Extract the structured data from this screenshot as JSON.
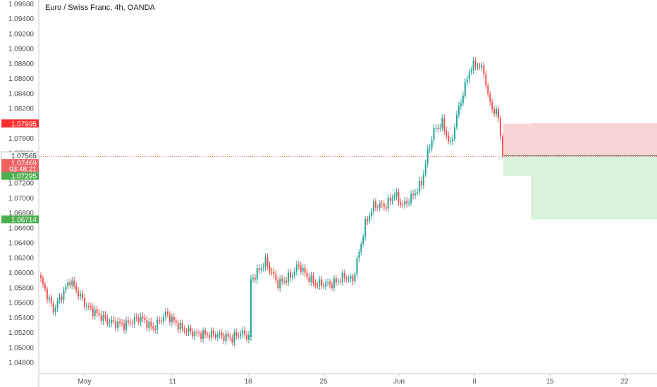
{
  "header": {
    "title": "Euro / Swiss Franc, 4h, OANDA"
  },
  "colors": {
    "up": "#26a69a",
    "down": "#ef5350",
    "stop_zone": "#f8c9c9",
    "target_zone": "#d6efd6",
    "stop_tag": "#ff2d2d",
    "target_tag": "#4caf50",
    "entry_tag": "#4a4a4a",
    "price_tag": "#f06262",
    "grid_line": "#dddddd"
  },
  "chart_data": {
    "type": "candlestick",
    "ylim": [
      1.0465,
      1.0965
    ],
    "y_ticks": [
      "1.09600",
      "1.09400",
      "1.09200",
      "1.09000",
      "1.08800",
      "1.08600",
      "1.08400",
      "1.08200",
      "1.08000",
      "1.07800",
      "1.07600",
      "1.07400",
      "1.07200",
      "1.07000",
      "1.06800",
      "1.06600",
      "1.06400",
      "1.06200",
      "1.06000",
      "1.05800",
      "1.05600",
      "1.05400",
      "1.05200",
      "1.05000",
      "1.04800"
    ],
    "x_ticks": [
      "May",
      "11",
      "18",
      "25",
      "Jun",
      "8",
      "15",
      "22"
    ],
    "anchors": [
      {
        "i": 0,
        "p": 1.059
      },
      {
        "i": 6,
        "p": 1.055
      },
      {
        "i": 14,
        "p": 1.059
      },
      {
        "i": 22,
        "p": 1.0555
      },
      {
        "i": 32,
        "p": 1.0535
      },
      {
        "i": 40,
        "p": 1.053
      },
      {
        "i": 48,
        "p": 1.054
      },
      {
        "i": 54,
        "p": 1.0525
      },
      {
        "i": 60,
        "p": 1.0545
      },
      {
        "i": 68,
        "p": 1.0525
      },
      {
        "i": 75,
        "p": 1.0518
      },
      {
        "i": 85,
        "p": 1.0517
      },
      {
        "i": 92,
        "p": 1.0512
      },
      {
        "i": 96,
        "p": 1.052
      },
      {
        "i": 100,
        "p": 1.0514
      },
      {
        "i": 101,
        "p": 1.059
      },
      {
        "i": 104,
        "p": 1.06
      },
      {
        "i": 108,
        "p": 1.0615
      },
      {
        "i": 114,
        "p": 1.0585
      },
      {
        "i": 120,
        "p": 1.0595
      },
      {
        "i": 124,
        "p": 1.061
      },
      {
        "i": 128,
        "p": 1.0595
      },
      {
        "i": 132,
        "p": 1.0585
      },
      {
        "i": 140,
        "p": 1.0585
      },
      {
        "i": 146,
        "p": 1.0595
      },
      {
        "i": 150,
        "p": 1.059
      },
      {
        "i": 156,
        "p": 1.0665
      },
      {
        "i": 160,
        "p": 1.069
      },
      {
        "i": 166,
        "p": 1.069
      },
      {
        "i": 170,
        "p": 1.0705
      },
      {
        "i": 174,
        "p": 1.069
      },
      {
        "i": 178,
        "p": 1.07
      },
      {
        "i": 183,
        "p": 1.072
      },
      {
        "i": 186,
        "p": 1.076
      },
      {
        "i": 189,
        "p": 1.079
      },
      {
        "i": 193,
        "p": 1.08
      },
      {
        "i": 197,
        "p": 1.077
      },
      {
        "i": 200,
        "p": 1.081
      },
      {
        "i": 203,
        "p": 1.084
      },
      {
        "i": 206,
        "p": 1.087
      },
      {
        "i": 209,
        "p": 1.088
      },
      {
        "i": 213,
        "p": 1.087
      },
      {
        "i": 215,
        "p": 1.0835
      },
      {
        "i": 218,
        "p": 1.0815
      },
      {
        "i": 220,
        "p": 1.081
      },
      {
        "i": 222,
        "p": 1.0757
      }
    ],
    "current_price": 1.07565,
    "position": {
      "entry": 1.07566,
      "stop": 1.08002,
      "target": 1.06714,
      "start_index": 222,
      "stop_zone_top": 1.07995,
      "target_zone_bottom": 1.06714
    },
    "price_tags": [
      {
        "value": 1.08002,
        "label": "1.08002",
        "kind": "stop"
      },
      {
        "value": 1.07995,
        "label": "1.07995",
        "kind": "stop"
      },
      {
        "value": 1.07566,
        "label": "1.07566",
        "kind": "entry"
      },
      {
        "value": 1.07565,
        "label": "1.07565",
        "kind": "current"
      },
      {
        "value": 1.07469,
        "label": "1.07469",
        "kind": "price"
      },
      {
        "value": 1.0739,
        "label": "03:48:21",
        "kind": "price"
      },
      {
        "value": 1.07295,
        "label": "1.07295",
        "kind": "target"
      },
      {
        "value": 1.06714,
        "label": "1.06714",
        "kind": "target"
      }
    ]
  }
}
